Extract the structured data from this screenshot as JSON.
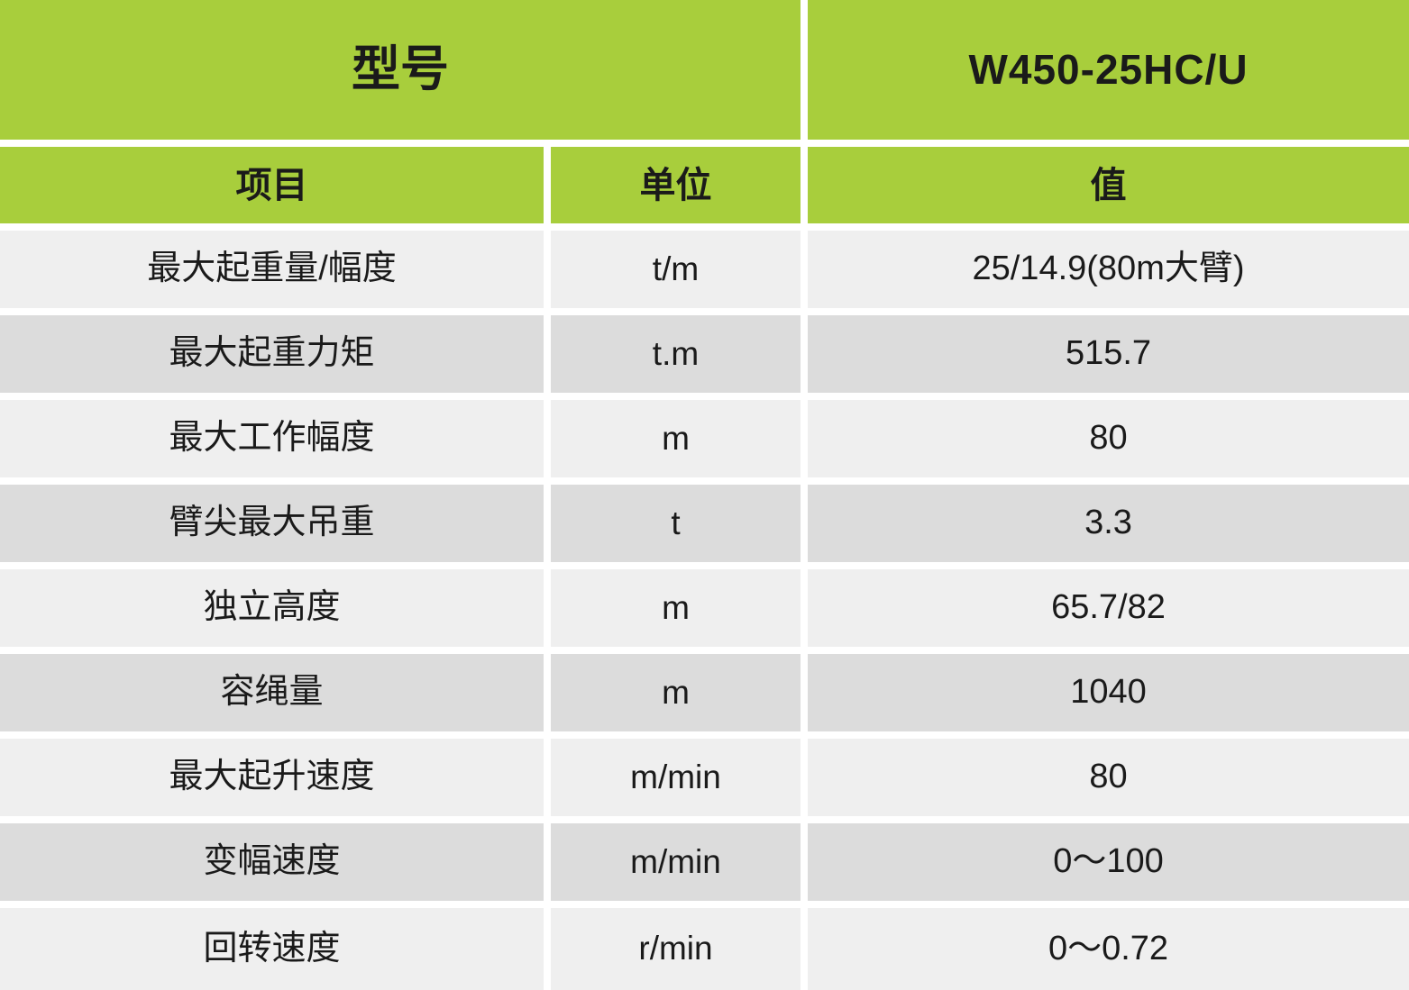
{
  "table": {
    "model_header": {
      "label": "型号",
      "value": "W450-25HC/U"
    },
    "columns": {
      "item": "项目",
      "unit": "单位",
      "value": "值"
    },
    "rows": [
      {
        "item": "最大起重量/幅度",
        "unit": "t/m",
        "value": "25/14.9(80m大臂)"
      },
      {
        "item": "最大起重力矩",
        "unit": "t.m",
        "value": "515.7"
      },
      {
        "item": "最大工作幅度",
        "unit": "m",
        "value": "80"
      },
      {
        "item": "臂尖最大吊重",
        "unit": "t",
        "value": "3.3"
      },
      {
        "item": "独立高度",
        "unit": "m",
        "value": "65.7/82"
      },
      {
        "item": "容绳量",
        "unit": "m",
        "value": "1040"
      },
      {
        "item": "最大起升速度",
        "unit": "m/min",
        "value": "80"
      },
      {
        "item": "变幅速度",
        "unit": "m/min",
        "value": "0～100"
      },
      {
        "item": "回转速度",
        "unit": "r/min",
        "value": "0～0.72"
      }
    ],
    "colors": {
      "header_green": "#a8ce3c",
      "row_light": "#efefef",
      "row_dark": "#dcdcdc",
      "gap_white": "#ffffff",
      "text": "#1a1a1a"
    }
  },
  "chart_data": {
    "type": "table",
    "title": "型号 W450-25HC/U",
    "columns": [
      "项目",
      "单位",
      "值"
    ],
    "rows": [
      [
        "最大起重量/幅度",
        "t/m",
        "25/14.9(80m大臂)"
      ],
      [
        "最大起重力矩",
        "t.m",
        "515.7"
      ],
      [
        "最大工作幅度",
        "m",
        "80"
      ],
      [
        "臂尖最大吊重",
        "t",
        "3.3"
      ],
      [
        "独立高度",
        "m",
        "65.7/82"
      ],
      [
        "容绳量",
        "m",
        "1040"
      ],
      [
        "最大起升速度",
        "m/min",
        "80"
      ],
      [
        "变幅速度",
        "m/min",
        "0～100"
      ],
      [
        "回转速度",
        "r/min",
        "0～0.72"
      ]
    ],
    "layout": {
      "header_fill": "#a8ce3c",
      "body_fill_alternating": [
        "#efefef",
        "#dcdcdc"
      ],
      "grid": "white gutters"
    }
  }
}
